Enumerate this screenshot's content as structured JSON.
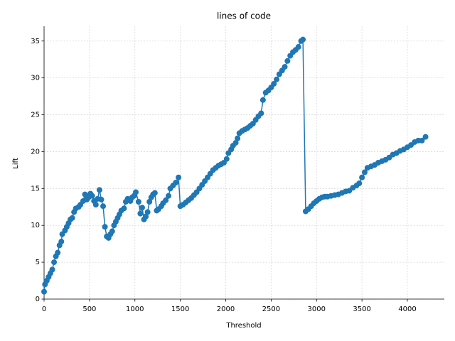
{
  "chart_data": {
    "type": "line",
    "title": "lines of code",
    "x_label": "Threshold",
    "y_label": "Lift",
    "x": [
      0,
      10,
      30,
      50,
      70,
      90,
      110,
      130,
      150,
      170,
      190,
      200,
      230,
      250,
      270,
      290,
      310,
      330,
      350,
      380,
      400,
      430,
      450,
      470,
      490,
      510,
      530,
      550,
      570,
      590,
      610,
      630,
      650,
      670,
      690,
      710,
      730,
      750,
      770,
      790,
      810,
      830,
      850,
      880,
      900,
      920,
      950,
      970,
      990,
      1010,
      1040,
      1060,
      1080,
      1100,
      1120,
      1140,
      1160,
      1180,
      1200,
      1220,
      1240,
      1260,
      1290,
      1310,
      1340,
      1370,
      1390,
      1420,
      1450,
      1480,
      1500,
      1530,
      1560,
      1590,
      1620,
      1650,
      1680,
      1710,
      1740,
      1770,
      1800,
      1830,
      1860,
      1890,
      1920,
      1950,
      1980,
      2010,
      2030,
      2060,
      2080,
      2110,
      2130,
      2150,
      2180,
      2210,
      2240,
      2270,
      2300,
      2330,
      2360,
      2390,
      2410,
      2440,
      2470,
      2500,
      2530,
      2560,
      2590,
      2620,
      2650,
      2680,
      2710,
      2740,
      2770,
      2800,
      2830,
      2850,
      2880,
      2910,
      2940,
      2970,
      3000,
      3030,
      3060,
      3090,
      3120,
      3160,
      3200,
      3240,
      3280,
      3320,
      3360,
      3400,
      3440,
      3470,
      3500,
      3530,
      3560,
      3600,
      3640,
      3680,
      3720,
      3760,
      3800,
      3840,
      3880,
      3920,
      3960,
      4000,
      4040,
      4080,
      4120,
      4160,
      4200
    ],
    "values": [
      1.0,
      2.0,
      2.5,
      3.0,
      3.5,
      4.0,
      5.0,
      5.8,
      6.3,
      7.3,
      7.8,
      8.8,
      9.3,
      9.8,
      10.3,
      10.8,
      11.0,
      11.8,
      12.3,
      12.5,
      12.8,
      13.3,
      14.2,
      13.5,
      13.8,
      14.3,
      14.0,
      13.3,
      12.8,
      13.6,
      14.8,
      13.5,
      12.6,
      9.8,
      8.5,
      8.3,
      8.8,
      9.2,
      10.0,
      10.5,
      11.0,
      11.5,
      12.0,
      12.3,
      13.2,
      13.6,
      13.3,
      13.8,
      14.0,
      14.5,
      13.2,
      11.6,
      12.4,
      10.8,
      11.2,
      11.8,
      13.2,
      13.8,
      14.2,
      14.4,
      12.0,
      12.2,
      12.6,
      13.0,
      13.4,
      14.0,
      15.0,
      15.4,
      15.8,
      16.5,
      12.6,
      12.8,
      13.1,
      13.4,
      13.7,
      14.1,
      14.5,
      15.0,
      15.5,
      16.0,
      16.5,
      17.0,
      17.5,
      17.8,
      18.1,
      18.3,
      18.5,
      19.0,
      19.8,
      20.3,
      20.8,
      21.2,
      21.8,
      22.5,
      22.8,
      23.0,
      23.2,
      23.5,
      23.8,
      24.3,
      24.8,
      25.2,
      27.0,
      28.0,
      28.3,
      28.7,
      29.2,
      29.8,
      30.5,
      31.0,
      31.5,
      32.3,
      33.0,
      33.5,
      33.8,
      34.2,
      35.0,
      35.2,
      11.9,
      12.2,
      12.6,
      13.0,
      13.3,
      13.6,
      13.8,
      13.9,
      13.9,
      14.0,
      14.1,
      14.2,
      14.4,
      14.6,
      14.7,
      15.1,
      15.4,
      15.7,
      16.5,
      17.2,
      17.8,
      18.0,
      18.2,
      18.5,
      18.7,
      18.9,
      19.2,
      19.6,
      19.8,
      20.1,
      20.3,
      20.6,
      20.9,
      21.3,
      21.5,
      21.5,
      22.0
    ],
    "color": "#1f77b4",
    "xlim": [
      0,
      4407
    ],
    "ylim": [
      0,
      37
    ],
    "xticks": [
      0,
      500,
      1000,
      1500,
      2000,
      2500,
      3000,
      3500,
      4000
    ],
    "yticks": [
      0,
      5,
      10,
      15,
      20,
      25,
      30,
      35
    ],
    "grid": true
  }
}
